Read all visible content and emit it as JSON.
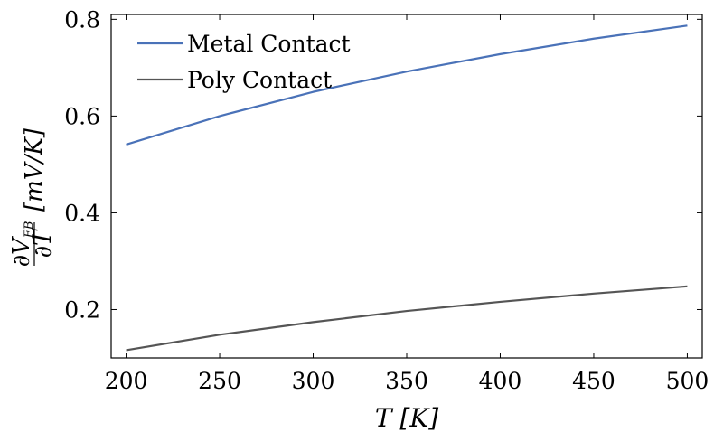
{
  "chart_data": {
    "type": "line",
    "title": "",
    "xlabel": "T [K]",
    "ylabel": "∂V_FB/∂T [mV/K]",
    "xlim": [
      192,
      508
    ],
    "ylim": [
      0.1,
      0.81
    ],
    "x_ticks": [
      200,
      250,
      300,
      350,
      400,
      450,
      500
    ],
    "x_tick_labels": [
      "200",
      "250",
      "300",
      "350",
      "400",
      "450",
      "500"
    ],
    "y_ticks": [
      0.2,
      0.4,
      0.6,
      0.8
    ],
    "y_tick_labels": [
      "0.2",
      "0.4",
      "0.6",
      "0.8"
    ],
    "grid": false,
    "legend_position": "top-left",
    "x": [
      200,
      250,
      300,
      350,
      400,
      450,
      500
    ],
    "series": [
      {
        "name": "Metal Contact",
        "color": "#4a72b8",
        "values": [
          0.541,
          0.6,
          0.65,
          0.692,
          0.728,
          0.76,
          0.787
        ]
      },
      {
        "name": "Poly Contact",
        "color": "#555555",
        "values": [
          0.116,
          0.148,
          0.174,
          0.197,
          0.216,
          0.233,
          0.248
        ]
      }
    ]
  }
}
